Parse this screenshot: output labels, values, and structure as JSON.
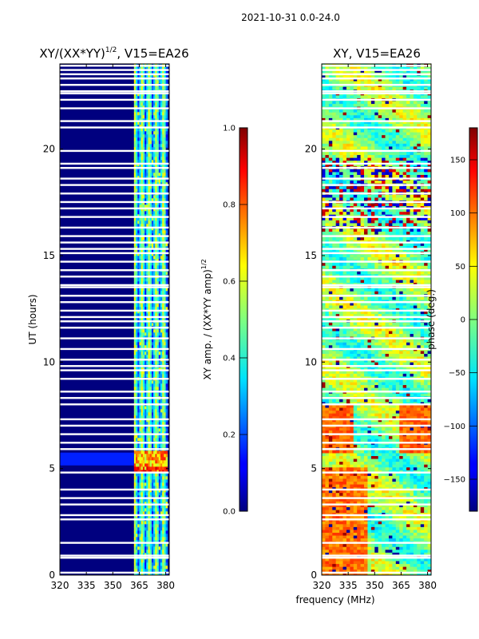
{
  "chart_data": [
    {
      "type": "heatmap",
      "suptitle": "2021-10-31 0.0-24.0",
      "title": "XY/(XX*YY)",
      "title_exp": "1/2",
      "title_suffix": ", V15=EA26",
      "xlabel": "",
      "ylabel": "UT (hours)",
      "xlim": [
        320,
        382
      ],
      "ylim": [
        0,
        24
      ],
      "xticks": [
        320,
        335,
        350,
        365,
        380
      ],
      "yticks": [
        0,
        5,
        10,
        15,
        20
      ],
      "value_range": [
        0.0,
        1.0
      ],
      "colormap": "jet",
      "colorbar": {
        "label": "XY amp. / (XX*YY amp)",
        "label_exp": "1/2",
        "ticks": [
          "0.0",
          "0.2",
          "0.4",
          "0.6",
          "0.8",
          "1.0"
        ],
        "tick_values": [
          0.0,
          0.2,
          0.4,
          0.6,
          0.8,
          1.0
        ],
        "range": [
          0.0,
          1.0
        ]
      },
      "signal_band_mhz": [
        362,
        381
      ],
      "flagged_hours": [
        0.1,
        0.8,
        0.9,
        1.5,
        2.6,
        2.8,
        3.3,
        3.6,
        4.0,
        4.8,
        5.9,
        6.2,
        6.6,
        7.0,
        7.3,
        8.0,
        8.3,
        8.6,
        9.2,
        9.6,
        9.8,
        10.1,
        10.6,
        11.1,
        11.6,
        11.9,
        12.1,
        12.4,
        12.8,
        13.1,
        13.5,
        13.6,
        14.0,
        14.3,
        14.7,
        15.1,
        15.3,
        15.6,
        15.9,
        16.3,
        16.8,
        17.2,
        17.5,
        17.9,
        18.3,
        18.6,
        19.1,
        19.3,
        19.9,
        21.0,
        21.3,
        21.9,
        22.3,
        22.6,
        22.7,
        23.0,
        23.3,
        23.5,
        23.7,
        23.9
      ]
    },
    {
      "type": "heatmap",
      "title": "XY, V15=EA26",
      "xlabel": "frequency (MHz)",
      "ylabel": "",
      "xlim": [
        320,
        382
      ],
      "ylim": [
        0,
        24
      ],
      "xticks": [
        320,
        335,
        350,
        365,
        380
      ],
      "yticks": [
        0,
        5,
        10,
        15,
        20
      ],
      "value_range": [
        -180,
        180
      ],
      "colormap": "jet",
      "colorbar": {
        "label": "phase (deg.)",
        "ticks": [
          "−150",
          "−100",
          "−50",
          "0",
          "50",
          "100",
          "150"
        ],
        "tick_values": [
          -150,
          -100,
          -50,
          0,
          50,
          100,
          150
        ],
        "range": [
          -180,
          180
        ]
      },
      "flagged_hours": [
        0.1,
        0.8,
        0.9,
        1.5,
        2.6,
        2.8,
        3.3,
        3.6,
        4.0,
        4.8,
        5.9,
        6.2,
        6.6,
        7.0,
        7.3,
        8.0,
        8.3,
        8.6,
        9.2,
        9.6,
        9.8,
        10.1,
        10.6,
        11.1,
        11.6,
        11.9,
        12.1,
        12.4,
        12.8,
        13.1,
        13.5,
        13.6,
        14.0,
        14.3,
        14.7,
        15.1,
        15.3,
        15.6,
        15.9,
        16.3,
        16.8,
        17.2,
        17.5,
        17.9,
        18.3,
        18.6,
        19.1,
        19.3,
        19.9,
        21.0,
        21.3,
        21.9,
        22.3,
        22.6,
        22.7,
        23.0,
        23.3,
        23.5,
        23.7,
        23.9
      ]
    }
  ]
}
